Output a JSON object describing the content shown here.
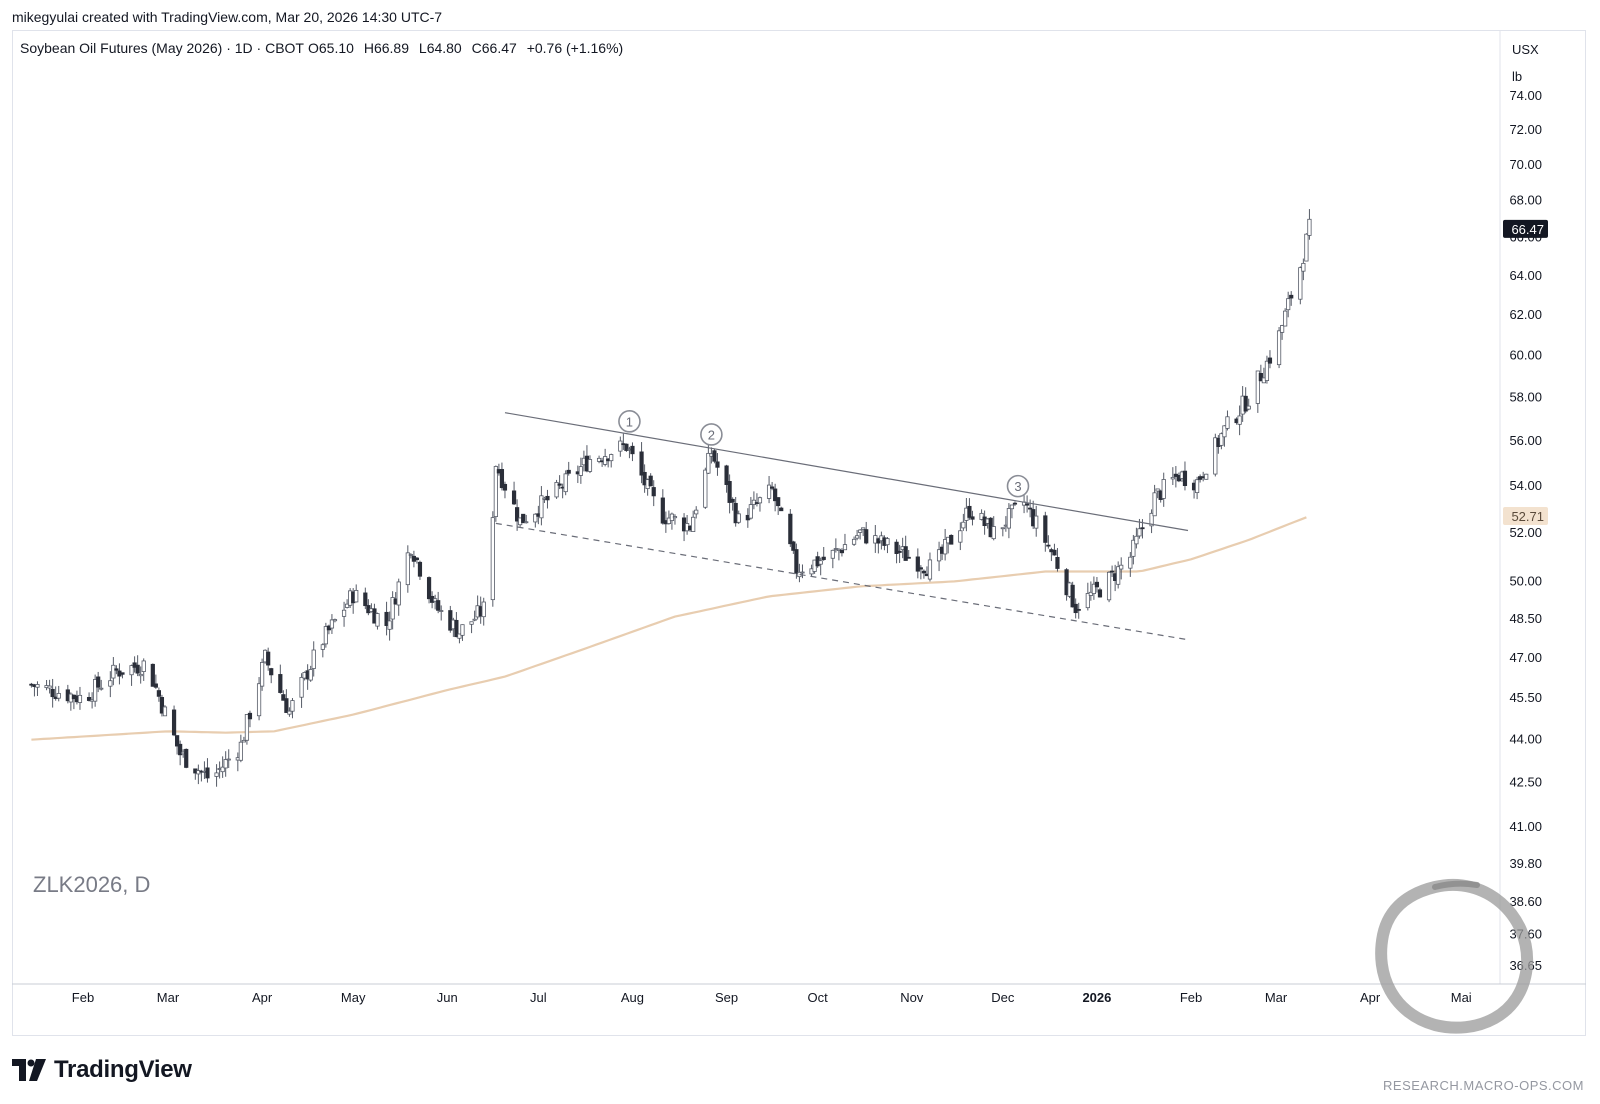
{
  "header": {
    "credit": "mikegyulai created with TradingView.com, Mar 20, 2026 14:30 UTC-7"
  },
  "footer": {
    "logo_text": "TradingView",
    "website": "RESEARCH.MACRO-OPS.COM"
  },
  "colors": {
    "up": "#ffffff",
    "down": "#2a2e39",
    "wick": "#555a66",
    "ma": "#e8cdb0",
    "trendline": "#6a6d78",
    "price_badge": "#131722"
  },
  "chart_data": {
    "type": "candlestick",
    "title": "Soybean Oil Futures (May 2026) · 1D · CBOT",
    "ohlc_label": {
      "O": "65.10",
      "H": "66.89",
      "L": "64.80",
      "C": "66.47",
      "change": "+0.76 (+1.16%)"
    },
    "watermark": "ZLK2026, D",
    "currency": "USX",
    "unit": "lb",
    "y_ticks": [
      74.0,
      72.0,
      70.0,
      68.0,
      66.0,
      64.0,
      62.0,
      60.0,
      58.0,
      56.0,
      54.0,
      52.0,
      50.0,
      48.5,
      47.0,
      45.5,
      44.0,
      42.5,
      41.0,
      39.8,
      38.6,
      37.6,
      36.65
    ],
    "y_tick_labels": [
      "74.00",
      "72.00",
      "70.00",
      "68.00",
      "66.00",
      "64.00",
      "62.00",
      "60.00",
      "58.00",
      "56.00",
      "54.00",
      "52.00",
      "50.00",
      "48.50",
      "47.00",
      "45.50",
      "44.00",
      "42.50",
      "41.00",
      "39.80",
      "38.60",
      "37.60",
      "36.65"
    ],
    "log_scale": true,
    "x_labels": [
      {
        "label": "Feb",
        "date": "2025-02-01"
      },
      {
        "label": "Mar",
        "date": "2025-03-01"
      },
      {
        "label": "Apr",
        "date": "2025-04-01"
      },
      {
        "label": "May",
        "date": "2025-05-01"
      },
      {
        "label": "Jun",
        "date": "2025-06-01"
      },
      {
        "label": "Jul",
        "date": "2025-07-01"
      },
      {
        "label": "Aug",
        "date": "2025-08-01"
      },
      {
        "label": "Sep",
        "date": "2025-09-01"
      },
      {
        "label": "Oct",
        "date": "2025-10-01"
      },
      {
        "label": "Nov",
        "date": "2025-11-01"
      },
      {
        "label": "Dec",
        "date": "2025-12-01"
      },
      {
        "label": "2026",
        "date": "2026-01-01"
      },
      {
        "label": "Feb",
        "date": "2026-02-01"
      },
      {
        "label": "Mar",
        "date": "2026-03-01"
      },
      {
        "label": "Apr",
        "date": "2026-04-01"
      },
      {
        "label": "Mai",
        "date": "2026-05-01"
      }
    ],
    "last_price": {
      "value": 66.47,
      "label": "66.47"
    },
    "ma_price": {
      "value": 52.71,
      "label": "52.71"
    },
    "price_path": [
      {
        "date": "2025-01-15",
        "price": 46.0
      },
      {
        "date": "2025-02-01",
        "price": 45.5
      },
      {
        "date": "2025-02-12",
        "price": 46.5
      },
      {
        "date": "2025-02-22",
        "price": 46.8
      },
      {
        "date": "2025-03-05",
        "price": 43.5
      },
      {
        "date": "2025-03-15",
        "price": 42.6
      },
      {
        "date": "2025-03-25",
        "price": 43.8
      },
      {
        "date": "2025-04-02",
        "price": 47.0
      },
      {
        "date": "2025-04-10",
        "price": 45.0
      },
      {
        "date": "2025-04-20",
        "price": 47.5
      },
      {
        "date": "2025-05-01",
        "price": 49.5
      },
      {
        "date": "2025-05-12",
        "price": 48.3
      },
      {
        "date": "2025-05-20",
        "price": 51.5
      },
      {
        "date": "2025-05-28",
        "price": 49.0
      },
      {
        "date": "2025-06-05",
        "price": 48.0
      },
      {
        "date": "2025-06-14",
        "price": 49.0
      },
      {
        "date": "2025-06-17",
        "price": 55.0
      },
      {
        "date": "2025-06-25",
        "price": 52.5
      },
      {
        "date": "2025-07-05",
        "price": 53.5
      },
      {
        "date": "2025-07-18",
        "price": 55.2
      },
      {
        "date": "2025-07-30",
        "price": 55.8
      },
      {
        "date": "2025-08-10",
        "price": 52.8
      },
      {
        "date": "2025-08-20",
        "price": 52.3
      },
      {
        "date": "2025-08-27",
        "price": 55.5
      },
      {
        "date": "2025-09-05",
        "price": 52.5
      },
      {
        "date": "2025-09-16",
        "price": 53.8
      },
      {
        "date": "2025-09-24",
        "price": 50.5
      },
      {
        "date": "2025-10-05",
        "price": 51.0
      },
      {
        "date": "2025-10-15",
        "price": 52.0
      },
      {
        "date": "2025-10-28",
        "price": 51.2
      },
      {
        "date": "2025-11-08",
        "price": 50.5
      },
      {
        "date": "2025-11-20",
        "price": 53.0
      },
      {
        "date": "2025-11-28",
        "price": 52.0
      },
      {
        "date": "2025-12-08",
        "price": 53.3
      },
      {
        "date": "2025-12-18",
        "price": 51.0
      },
      {
        "date": "2025-12-25",
        "price": 49.0
      },
      {
        "date": "2026-01-03",
        "price": 49.8
      },
      {
        "date": "2026-01-12",
        "price": 51.0
      },
      {
        "date": "2026-01-20",
        "price": 53.5
      },
      {
        "date": "2026-01-28",
        "price": 54.5
      },
      {
        "date": "2026-02-03",
        "price": 54.2
      },
      {
        "date": "2026-02-12",
        "price": 56.5
      },
      {
        "date": "2026-02-20",
        "price": 58.0
      },
      {
        "date": "2026-03-01",
        "price": 60.5
      },
      {
        "date": "2026-03-06",
        "price": 63.0
      },
      {
        "date": "2026-03-09",
        "price": 64.5
      },
      {
        "date": "2026-03-12",
        "price": 66.47
      }
    ],
    "moving_average": [
      {
        "date": "2025-01-15",
        "price": 44.0
      },
      {
        "date": "2025-03-01",
        "price": 44.3
      },
      {
        "date": "2025-03-20",
        "price": 44.25
      },
      {
        "date": "2025-04-05",
        "price": 44.3
      },
      {
        "date": "2025-05-01",
        "price": 44.9
      },
      {
        "date": "2025-06-01",
        "price": 45.8
      },
      {
        "date": "2025-06-20",
        "price": 46.3
      },
      {
        "date": "2025-07-15",
        "price": 47.3
      },
      {
        "date": "2025-08-15",
        "price": 48.6
      },
      {
        "date": "2025-09-15",
        "price": 49.4
      },
      {
        "date": "2025-10-15",
        "price": 49.8
      },
      {
        "date": "2025-11-15",
        "price": 50.0
      },
      {
        "date": "2025-12-15",
        "price": 50.4
      },
      {
        "date": "2026-01-15",
        "price": 50.4
      },
      {
        "date": "2026-02-01",
        "price": 50.9
      },
      {
        "date": "2026-02-20",
        "price": 51.7
      },
      {
        "date": "2026-03-12",
        "price": 52.71
      }
    ],
    "trendlines": [
      {
        "name": "resistance",
        "style": "solid",
        "from": {
          "date": "2025-06-20",
          "price": 57.3
        },
        "to": {
          "date": "2026-01-31",
          "price": 52.1
        }
      },
      {
        "name": "support",
        "style": "dashed",
        "from": {
          "date": "2025-06-17",
          "price": 52.4
        },
        "to": {
          "date": "2026-01-31",
          "price": 47.7
        }
      }
    ],
    "markers": [
      {
        "label": "1",
        "date": "2025-07-31",
        "price": 56.9
      },
      {
        "label": "2",
        "date": "2025-08-27",
        "price": 56.3
      },
      {
        "label": "3",
        "date": "2025-12-06",
        "price": 54.0
      }
    ]
  }
}
